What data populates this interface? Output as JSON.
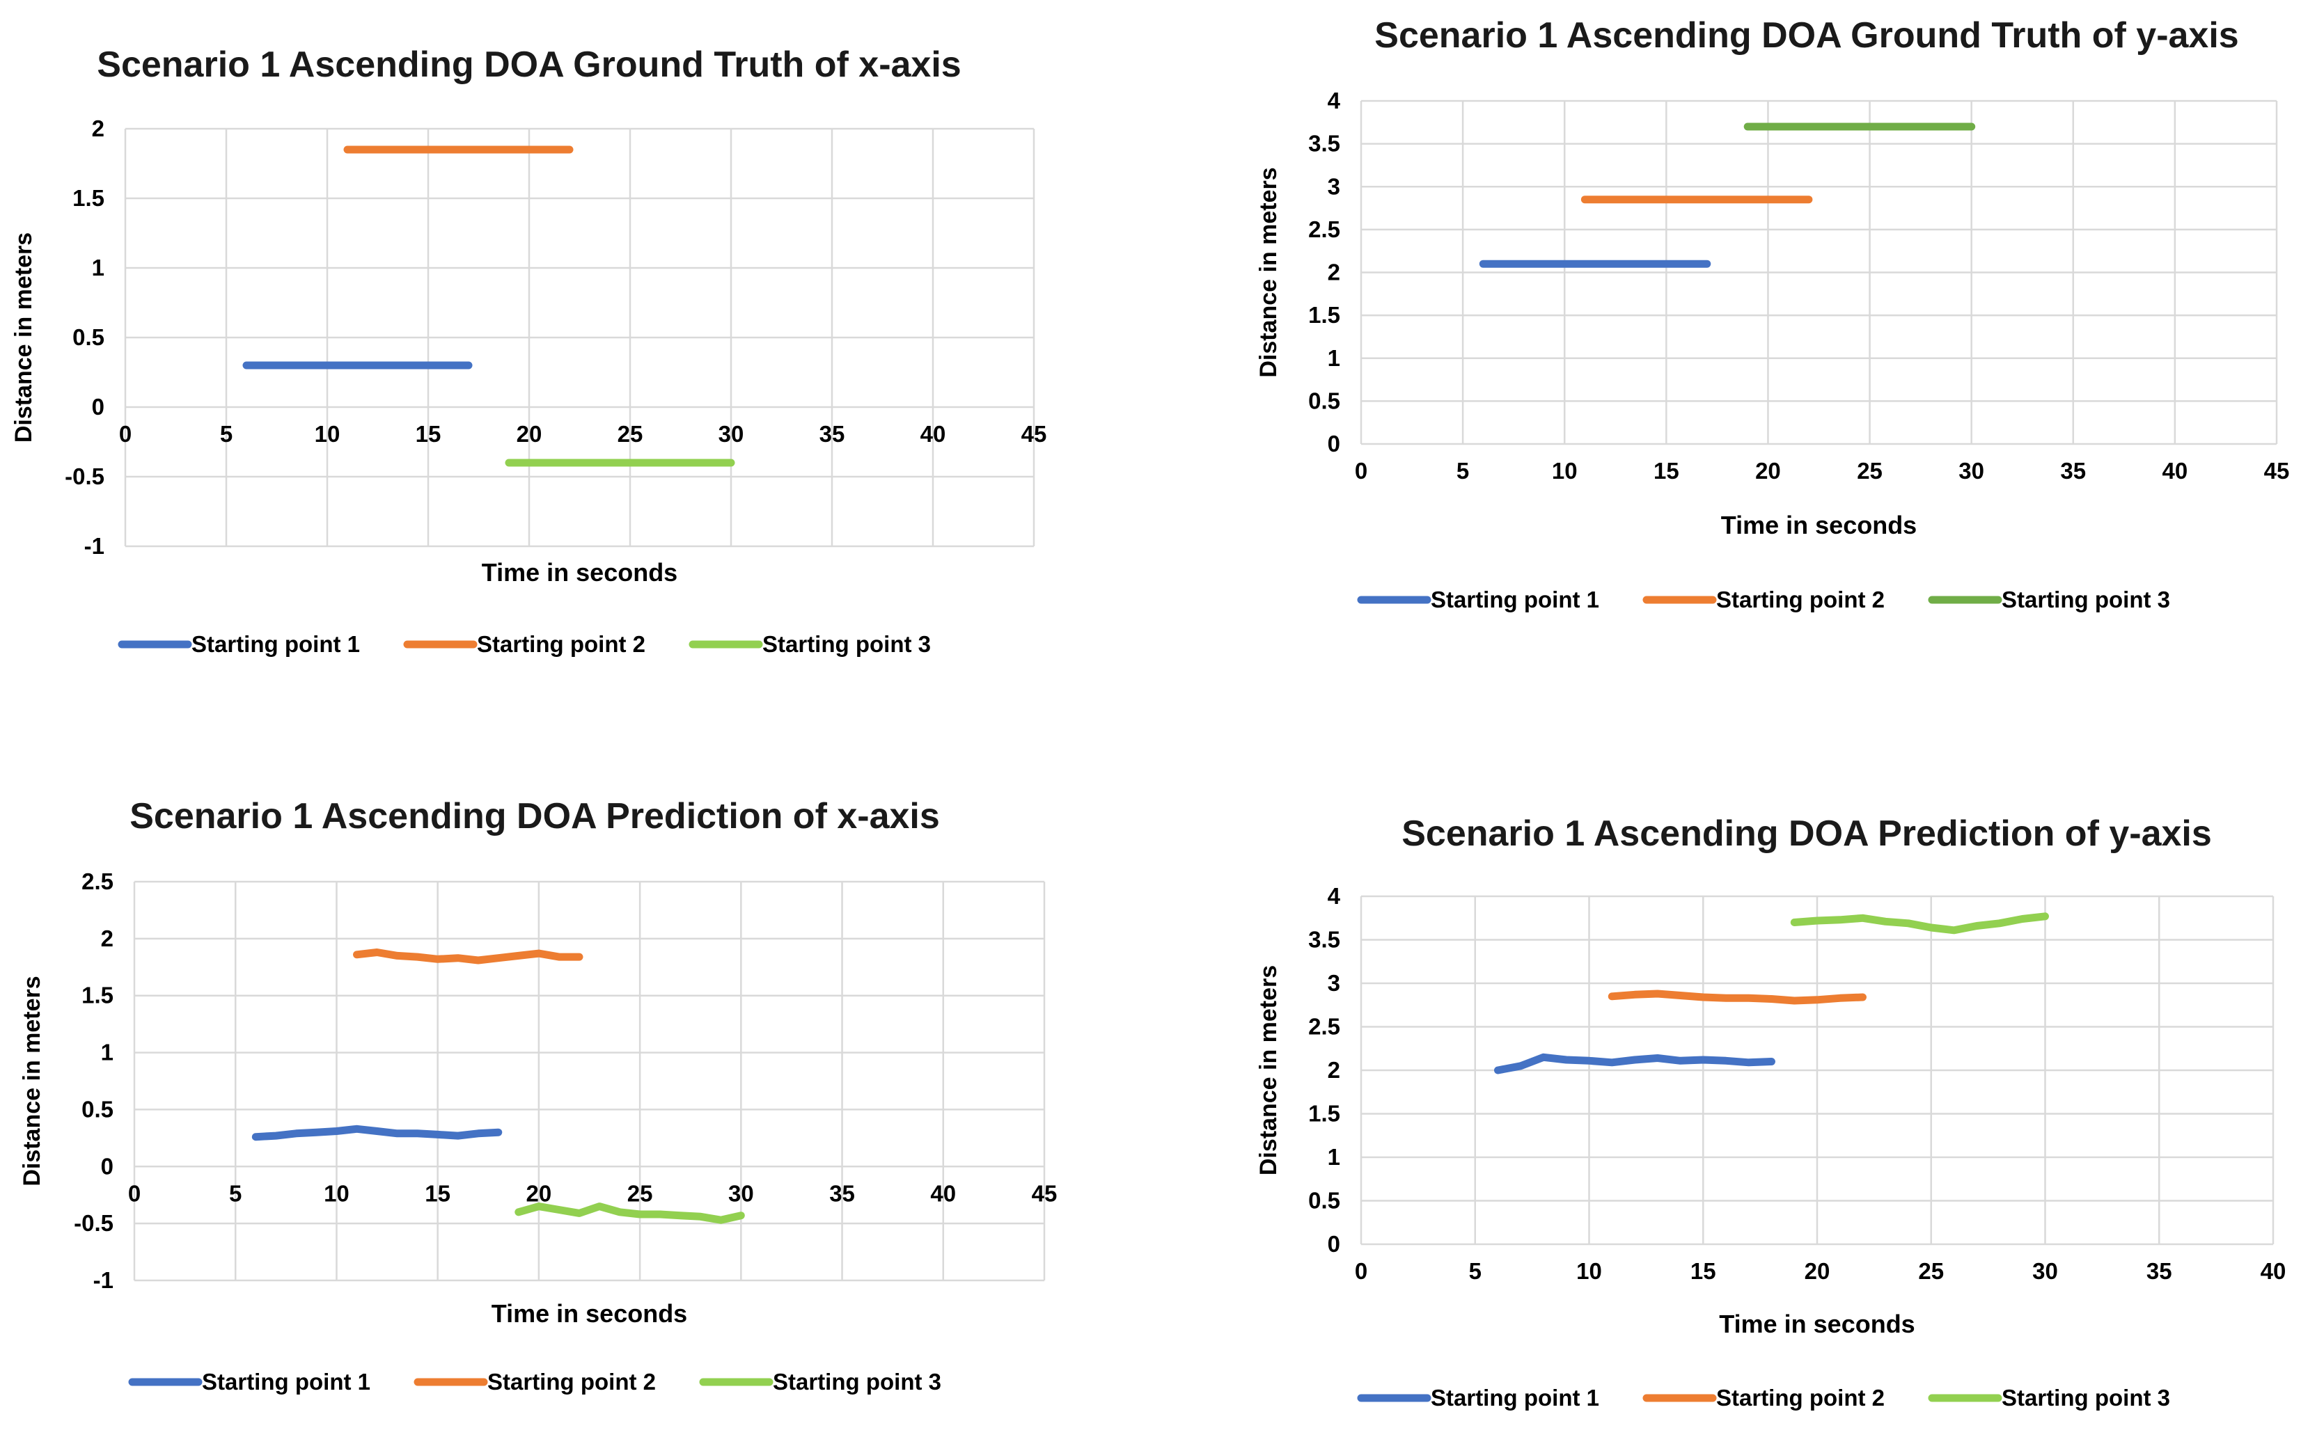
{
  "chart_data": [
    {
      "type": "line",
      "title": "Scenario 1 Ascending DOA Ground Truth of x-axis",
      "xlabel": "Time in seconds",
      "ylabel": "Distance in meters",
      "xlim": [
        0,
        45
      ],
      "ylim": [
        -1,
        2
      ],
      "xticks": [
        0,
        5,
        10,
        15,
        20,
        25,
        30,
        35,
        40,
        45
      ],
      "yticks": [
        2,
        1.5,
        1,
        0.5,
        0,
        -0.5,
        -1
      ],
      "legend_position": "bottom",
      "series": [
        {
          "name": "Starting point 1",
          "color": "#4472C4",
          "x": [
            6,
            17
          ],
          "y": [
            0.3,
            0.3
          ]
        },
        {
          "name": "Starting point 2",
          "color": "#ED7D31",
          "x": [
            11,
            22
          ],
          "y": [
            1.85,
            1.85
          ]
        },
        {
          "name": "Starting point 3",
          "color": "#92D050",
          "x": [
            19,
            30
          ],
          "y": [
            -0.4,
            -0.4
          ]
        }
      ]
    },
    {
      "type": "line",
      "title": "Scenario 1 Ascending DOA Ground Truth of y-axis",
      "xlabel": "Time in seconds",
      "ylabel": "Distance in meters",
      "xlim": [
        0,
        45
      ],
      "ylim": [
        0,
        4
      ],
      "xticks": [
        0,
        5,
        10,
        15,
        20,
        25,
        30,
        35,
        40,
        45
      ],
      "yticks": [
        4,
        3.5,
        3,
        2.5,
        2,
        1.5,
        1,
        0.5,
        0
      ],
      "legend_position": "bottom",
      "series": [
        {
          "name": "Starting point 1",
          "color": "#4472C4",
          "x": [
            6,
            17
          ],
          "y": [
            2.1,
            2.1
          ]
        },
        {
          "name": "Starting point 2",
          "color": "#ED7D31",
          "x": [
            11,
            22
          ],
          "y": [
            2.85,
            2.85
          ]
        },
        {
          "name": "Starting point 3",
          "color": "#70AD47",
          "x": [
            19,
            30
          ],
          "y": [
            3.7,
            3.7
          ]
        }
      ]
    },
    {
      "type": "line",
      "title": "Scenario 1 Ascending DOA Prediction of x-axis",
      "xlabel": "Time in seconds",
      "ylabel": "Distance in meters",
      "xlim": [
        0,
        45
      ],
      "ylim": [
        -1,
        2.5
      ],
      "xticks": [
        0,
        5,
        10,
        15,
        20,
        25,
        30,
        35,
        40,
        45
      ],
      "yticks": [
        2.5,
        2,
        1.5,
        1,
        0.5,
        0,
        -0.5,
        -1
      ],
      "legend_position": "bottom",
      "series": [
        {
          "name": "Starting point 1",
          "color": "#4472C4",
          "x": [
            6,
            7,
            8,
            9,
            10,
            11,
            12,
            13,
            14,
            15,
            16,
            17,
            18
          ],
          "y": [
            0.26,
            0.27,
            0.29,
            0.3,
            0.31,
            0.33,
            0.31,
            0.29,
            0.29,
            0.28,
            0.27,
            0.29,
            0.3
          ]
        },
        {
          "name": "Starting point 2",
          "color": "#ED7D31",
          "x": [
            11,
            12,
            13,
            14,
            15,
            16,
            17,
            18,
            19,
            20,
            21,
            22
          ],
          "y": [
            1.86,
            1.88,
            1.85,
            1.84,
            1.82,
            1.83,
            1.81,
            1.83,
            1.85,
            1.87,
            1.84,
            1.84
          ]
        },
        {
          "name": "Starting point 3",
          "color": "#92D050",
          "x": [
            19,
            20,
            21,
            22,
            23,
            24,
            25,
            26,
            27,
            28,
            29,
            30
          ],
          "y": [
            -0.4,
            -0.35,
            -0.38,
            -0.41,
            -0.35,
            -0.4,
            -0.42,
            -0.42,
            -0.43,
            -0.44,
            -0.47,
            -0.43
          ]
        }
      ]
    },
    {
      "type": "line",
      "title": "Scenario 1 Ascending DOA Prediction of y-axis",
      "xlabel": "Time in seconds",
      "ylabel": "Distance in meters",
      "xlim": [
        0,
        40
      ],
      "ylim": [
        0,
        4
      ],
      "xticks": [
        0,
        5,
        10,
        15,
        20,
        25,
        30,
        35,
        40
      ],
      "yticks": [
        4,
        3.5,
        3,
        2.5,
        2,
        1.5,
        1,
        0.5,
        0
      ],
      "legend_position": "bottom",
      "series": [
        {
          "name": "Starting point 1",
          "color": "#4472C4",
          "x": [
            6,
            7,
            8,
            9,
            10,
            11,
            12,
            13,
            14,
            15,
            16,
            17,
            18
          ],
          "y": [
            2.0,
            2.05,
            2.15,
            2.12,
            2.11,
            2.09,
            2.12,
            2.14,
            2.11,
            2.12,
            2.11,
            2.09,
            2.1
          ]
        },
        {
          "name": "Starting point 2",
          "color": "#ED7D31",
          "x": [
            11,
            12,
            13,
            14,
            15,
            16,
            17,
            18,
            19,
            20,
            21,
            22
          ],
          "y": [
            2.85,
            2.87,
            2.88,
            2.86,
            2.84,
            2.83,
            2.83,
            2.82,
            2.8,
            2.81,
            2.83,
            2.84
          ]
        },
        {
          "name": "Starting point 3",
          "color": "#92D050",
          "x": [
            19,
            20,
            21,
            22,
            23,
            24,
            25,
            26,
            27,
            28,
            29,
            30
          ],
          "y": [
            3.7,
            3.72,
            3.73,
            3.75,
            3.71,
            3.69,
            3.64,
            3.61,
            3.66,
            3.69,
            3.74,
            3.77
          ]
        }
      ]
    }
  ]
}
